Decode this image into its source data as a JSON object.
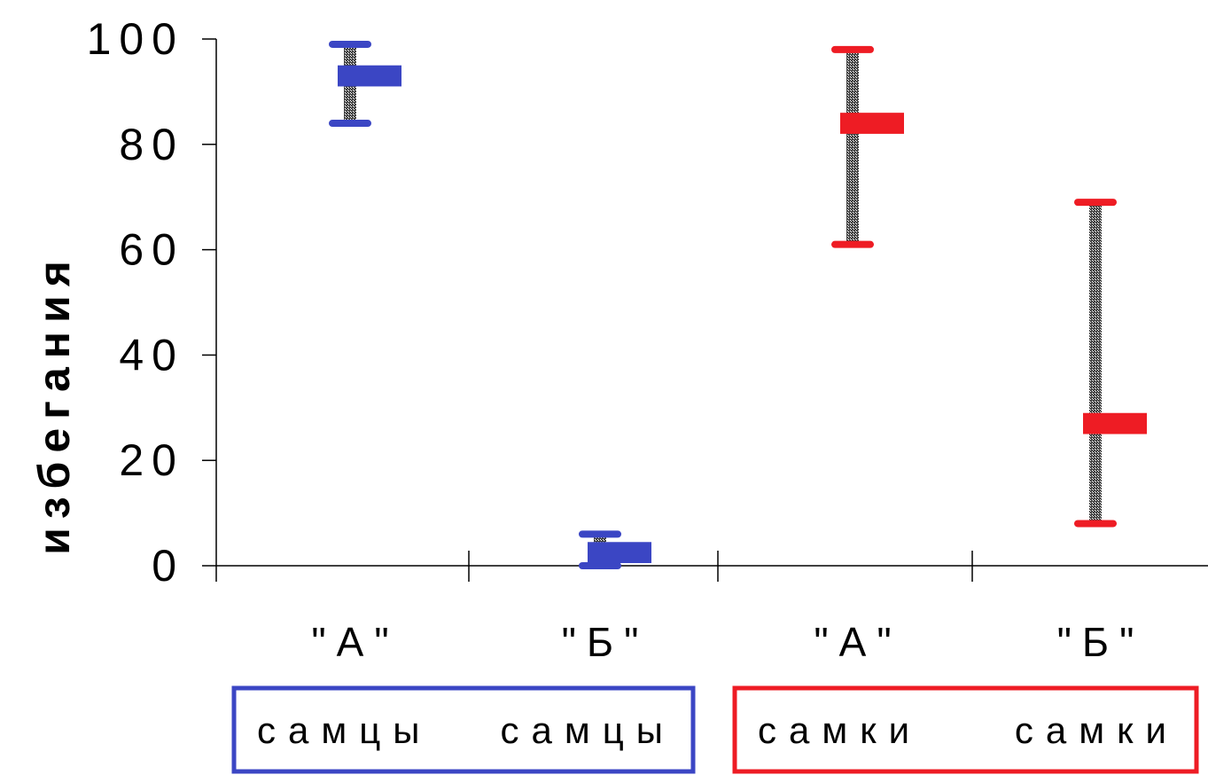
{
  "chart_data": {
    "type": "box",
    "ylabel": "избегания",
    "ylim": [
      0,
      100
    ],
    "yticks": [
      "0",
      "20",
      "40",
      "60",
      "80",
      "100"
    ],
    "categories": [
      "\"А\"",
      "\"Б\"",
      "\"А\"",
      "\"Б\""
    ],
    "groups": [
      {
        "label_left": "самцы",
        "label_right": "самцы",
        "color": "#3b46c4",
        "border_color": "#3b46c4"
      },
      {
        "label_left": "самки",
        "label_right": "самки",
        "color": "#ee1c24",
        "border_color": "#ee1c24"
      }
    ],
    "series": [
      {
        "category_index": 0,
        "group_index": 0,
        "low": 84,
        "high": 99,
        "box_low": 91,
        "box_high": 95,
        "color": "#3b46c4"
      },
      {
        "category_index": 1,
        "group_index": 0,
        "low": 0,
        "high": 6,
        "box_low": 0.5,
        "box_high": 4.5,
        "color": "#3b46c4"
      },
      {
        "category_index": 2,
        "group_index": 1,
        "low": 61,
        "high": 98,
        "box_low": 82,
        "box_high": 86,
        "color": "#ee1c24"
      },
      {
        "category_index": 3,
        "group_index": 1,
        "low": 8,
        "high": 69,
        "box_low": 25,
        "box_high": 29,
        "color": "#ee1c24"
      }
    ],
    "whisker_color": "#111111",
    "grid": false,
    "legend": "none"
  }
}
